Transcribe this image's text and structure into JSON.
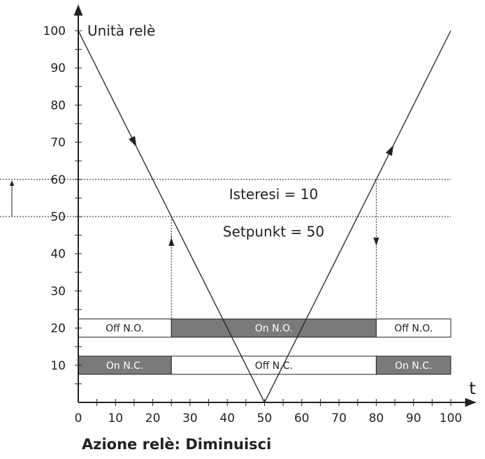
{
  "chart_data": {
    "type": "line",
    "ylabel": "Unità relè",
    "xlabel": "t",
    "xlim": [
      0,
      100
    ],
    "ylim": [
      0,
      100
    ],
    "x_ticks": [
      0,
      10,
      20,
      30,
      40,
      50,
      60,
      70,
      80,
      90,
      100
    ],
    "y_ticks": [
      10,
      20,
      30,
      40,
      50,
      60,
      70,
      80,
      90,
      100
    ],
    "series": [
      {
        "x": [
          0,
          50,
          100
        ],
        "y": [
          100,
          0,
          100
        ]
      }
    ],
    "reference_lines": [
      {
        "axis": "y",
        "value": 60,
        "style": "dotted"
      },
      {
        "axis": "y",
        "value": 50,
        "style": "dotted"
      }
    ],
    "switch_points": [
      {
        "x": 25,
        "y": 50,
        "direction": "up"
      },
      {
        "x": 80,
        "y": 60,
        "direction": "down"
      }
    ],
    "annotations": [
      {
        "text": "Isteresi = 10",
        "x": 50,
        "y": 56
      },
      {
        "text": "Setpunkt = 50",
        "x": 50,
        "y": 46
      }
    ],
    "relay_states": [
      {
        "y": 20,
        "segments": [
          {
            "x0": 0,
            "x1": 25,
            "label": "Off N.O.",
            "active": false
          },
          {
            "x0": 25,
            "x1": 80,
            "label": "On N.O.",
            "active": true
          },
          {
            "x0": 80,
            "x1": 100,
            "label": "Off N.O.",
            "active": false
          }
        ]
      },
      {
        "y": 10,
        "segments": [
          {
            "x0": 0,
            "x1": 25,
            "label": "On N.C.",
            "active": true
          },
          {
            "x0": 25,
            "x1": 80,
            "label": "Off N.C.",
            "active": false
          },
          {
            "x0": 80,
            "x1": 100,
            "label": "On N.C.",
            "active": true
          }
        ]
      }
    ],
    "colors": {
      "line": "#222222",
      "active_fill": "#7a7a7a",
      "inactive_fill": "#ffffff",
      "active_text": "#ffffff"
    },
    "grid": false
  },
  "caption": "Azione relè: Diminuisci"
}
